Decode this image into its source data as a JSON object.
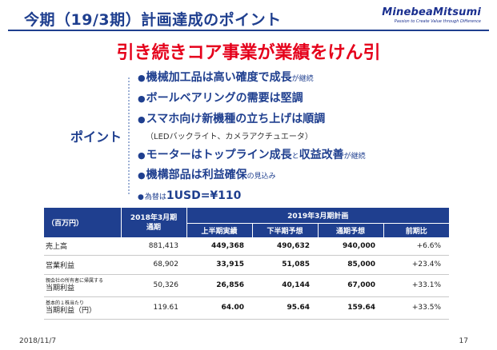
{
  "header": {
    "title": "今期（19/3期）計画達成のポイント",
    "logo_name": "MinebeaMitsumi",
    "logo_tag": "Passion to Create Value through Difference"
  },
  "headline": "引き続きコア事業が業績をけん引",
  "point_label": "ポイント",
  "bullets": [
    {
      "main": "機械加工品は高い確度で成長",
      "tail": "が継続"
    },
    {
      "main": "ボールベアリングの需要は堅調",
      "tail": ""
    },
    {
      "main": "スマホ向け新機種の立ち上げは順調",
      "tail": "",
      "sub": "（LEDバックライト、カメラアクチュエータ）"
    },
    {
      "main": "モーターはトップライン成長",
      "mid": "と",
      "main2": "収益改善",
      "tail": "が継続"
    },
    {
      "main": "機構部品は利益確保",
      "tail": "の見込み"
    },
    {
      "pre": "為替は",
      "main": "1USD=¥110",
      "tail": ""
    }
  ],
  "table": {
    "unit_label": "（百万円）",
    "col_prev": "2018年3月期\n通期",
    "col_plan_group": "2019年3月期計画",
    "sub_cols": [
      "上半期実績",
      "下半期予想",
      "通期予想",
      "前期比"
    ],
    "rows": [
      {
        "label_small": "",
        "label": "売上高",
        "prev": "881,413",
        "h1": "449,368",
        "h2": "490,632",
        "fy": "940,000",
        "yoy": "+6.6%"
      },
      {
        "label_small": "",
        "label": "営業利益",
        "prev": "68,902",
        "h1": "33,915",
        "h2": "51,085",
        "fy": "85,000",
        "yoy": "+23.4%"
      },
      {
        "label_small": "親会社の所有者に帰属する",
        "label": "当期利益",
        "prev": "50,326",
        "h1": "26,856",
        "h2": "40,144",
        "fy": "67,000",
        "yoy": "+33.1%"
      },
      {
        "label_small": "基本的１株当たり",
        "label": "当期利益（円）",
        "prev": "119.61",
        "h1": "64.00",
        "h2": "95.64",
        "fy": "159.64",
        "yoy": "+33.5%"
      }
    ]
  },
  "footer": {
    "date": "2018/11/7",
    "page": "17"
  }
}
